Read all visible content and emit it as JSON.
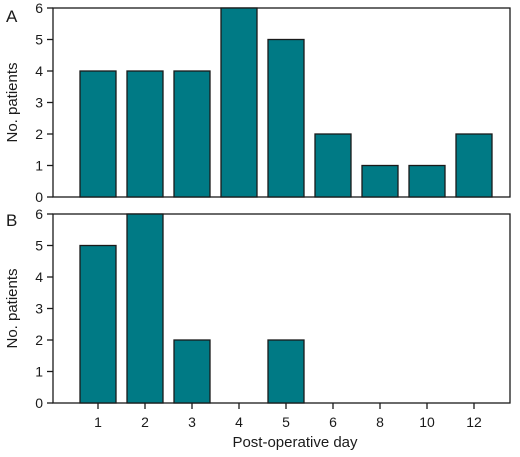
{
  "figure": {
    "xlabel": "Post-operative day",
    "bar_color": "#007a85"
  },
  "chart_data": [
    {
      "type": "bar",
      "panel": "A",
      "categories": [
        "1",
        "2",
        "3",
        "4",
        "5",
        "6",
        "8",
        "10",
        "12"
      ],
      "values": [
        4,
        4,
        4,
        6,
        5,
        2,
        1,
        1,
        2
      ],
      "xlabel": "",
      "ylabel": "No. patients",
      "ylim": [
        0,
        6
      ],
      "yticks": [
        0,
        1,
        2,
        3,
        4,
        5,
        6
      ],
      "grid": false
    },
    {
      "type": "bar",
      "panel": "B",
      "categories": [
        "1",
        "2",
        "3",
        "4",
        "5",
        "6",
        "8",
        "10",
        "12"
      ],
      "values": [
        5,
        6,
        2,
        0,
        2,
        0,
        0,
        0,
        0
      ],
      "xlabel": "Post-operative day",
      "ylabel": "No. patients",
      "ylim": [
        0,
        6
      ],
      "yticks": [
        0,
        1,
        2,
        3,
        4,
        5,
        6
      ],
      "grid": false
    }
  ]
}
